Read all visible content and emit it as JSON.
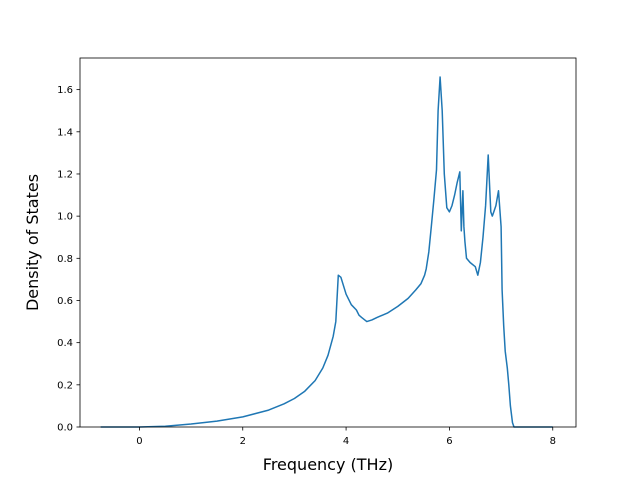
{
  "chart_data": {
    "type": "line",
    "title": "",
    "xlabel": "Frequency (THz)",
    "ylabel": "Density of States",
    "xlim": [
      -1.15,
      8.45
    ],
    "ylim": [
      0.0,
      1.75
    ],
    "xticks": [
      0,
      2,
      4,
      6,
      8
    ],
    "yticks": [
      0.0,
      0.2,
      0.4,
      0.6,
      0.8,
      1.0,
      1.2,
      1.4,
      1.6
    ],
    "xtick_labels": [
      "0",
      "2",
      "4",
      "6",
      "8"
    ],
    "ytick_labels": [
      "0.0",
      "0.2",
      "0.4",
      "0.6",
      "0.8",
      "1.0",
      "1.2",
      "1.4",
      "1.6"
    ],
    "grid": false,
    "legend": "none",
    "colors": {
      "line": "#1f77b4",
      "axes": "#000000",
      "background": "#ffffff"
    },
    "series": [
      {
        "x": [
          -0.75,
          -0.5,
          0.0,
          0.5,
          1.0,
          1.5,
          2.0,
          2.5,
          2.8,
          3.0,
          3.2,
          3.4,
          3.55,
          3.65,
          3.75,
          3.8,
          3.85,
          3.9,
          4.0,
          4.1,
          4.2,
          4.25,
          4.3,
          4.4,
          4.5,
          4.6,
          4.8,
          5.0,
          5.2,
          5.35,
          5.45,
          5.52,
          5.55,
          5.6,
          5.65,
          5.7,
          5.75,
          5.78,
          5.82,
          5.86,
          5.9,
          5.95,
          6.0,
          6.05,
          6.1,
          6.15,
          6.2,
          6.23,
          6.26,
          6.28,
          6.3,
          6.33,
          6.4,
          6.5,
          6.55,
          6.6,
          6.65,
          6.7,
          6.75,
          6.8,
          6.83,
          6.86,
          6.9,
          6.95,
          7.0,
          7.02,
          7.05,
          7.08,
          7.12,
          7.15,
          7.18,
          7.22,
          7.25,
          7.28,
          7.3,
          7.35,
          7.5,
          8.0
        ],
        "y": [
          0.0,
          0.0,
          0.0,
          0.004,
          0.014,
          0.028,
          0.048,
          0.08,
          0.11,
          0.135,
          0.17,
          0.22,
          0.28,
          0.34,
          0.43,
          0.5,
          0.72,
          0.71,
          0.63,
          0.58,
          0.555,
          0.53,
          0.52,
          0.5,
          0.508,
          0.52,
          0.54,
          0.572,
          0.61,
          0.65,
          0.68,
          0.72,
          0.75,
          0.83,
          0.95,
          1.08,
          1.22,
          1.5,
          1.66,
          1.5,
          1.2,
          1.04,
          1.02,
          1.05,
          1.1,
          1.16,
          1.21,
          0.93,
          1.12,
          0.95,
          0.88,
          0.8,
          0.78,
          0.76,
          0.72,
          0.78,
          0.9,
          1.05,
          1.29,
          1.02,
          1.0,
          1.02,
          1.05,
          1.12,
          0.95,
          0.65,
          0.48,
          0.36,
          0.28,
          0.2,
          0.1,
          0.02,
          0.0,
          0.0,
          0.0,
          0.0,
          0.0,
          0.0
        ]
      }
    ]
  }
}
